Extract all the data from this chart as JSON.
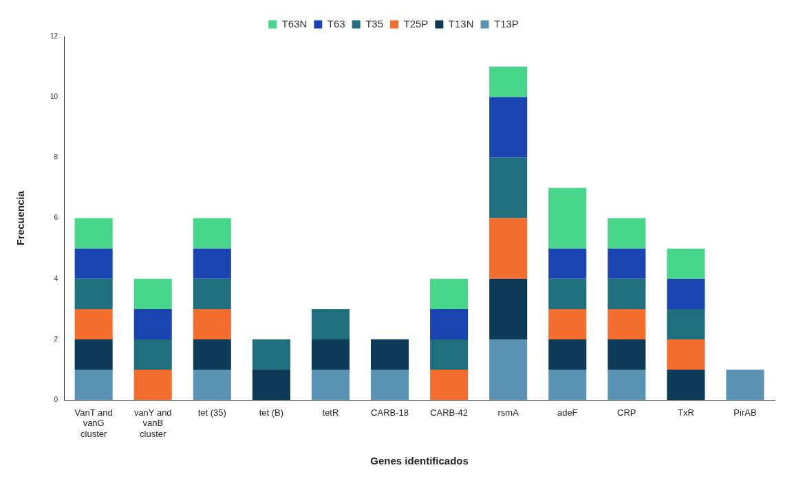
{
  "chart_data": {
    "type": "bar",
    "stacked": true,
    "xlabel": "Genes identificados",
    "ylabel": "Frecuencia",
    "categories": [
      "VanT and vanG cluster",
      "vanY and vanB cluster",
      "tet (35)",
      "tet (B)",
      "tetR",
      "CARB-18",
      "CARB-42",
      "rsmA",
      "adeF",
      "CRP",
      "TxR",
      "PirAB"
    ],
    "series": [
      {
        "name": "T13P",
        "color": "#5b93b5",
        "values": [
          1,
          0,
          1,
          0,
          1,
          1,
          0,
          2,
          1,
          1,
          0,
          1
        ]
      },
      {
        "name": "T13N",
        "color": "#0c3a57",
        "values": [
          1,
          0,
          1,
          1,
          1,
          1,
          0,
          2,
          1,
          1,
          1,
          0
        ]
      },
      {
        "name": "T25P",
        "color": "#f26d2e",
        "values": [
          1,
          1,
          1,
          0,
          0,
          0,
          1,
          2,
          1,
          1,
          1,
          0
        ]
      },
      {
        "name": "T35",
        "color": "#1f6f7f",
        "values": [
          1,
          1,
          1,
          1,
          1,
          0,
          1,
          2,
          1,
          1,
          1,
          0
        ]
      },
      {
        "name": "T63",
        "color": "#1a44b0",
        "values": [
          1,
          1,
          1,
          0,
          0,
          0,
          1,
          2,
          1,
          1,
          1,
          0
        ]
      },
      {
        "name": "T63N",
        "color": "#47d68a",
        "values": [
          1,
          1,
          1,
          0,
          0,
          0,
          1,
          1,
          2,
          1,
          1,
          0
        ]
      }
    ],
    "ylim": [
      0,
      12
    ],
    "yticks": [
      0,
      2,
      4,
      6,
      8,
      10,
      12
    ],
    "grid": false,
    "legend": "top"
  }
}
